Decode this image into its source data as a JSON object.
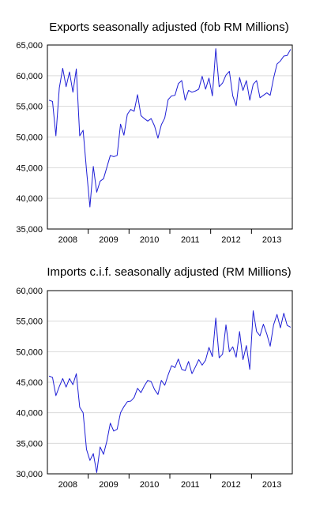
{
  "chart_data": [
    {
      "type": "line",
      "title": "Exports seasonally adjusted (fob RM Millions)",
      "xlabel": "",
      "ylabel": "",
      "ylim": [
        35000,
        65000
      ],
      "yticks": [
        35000,
        40000,
        45000,
        50000,
        55000,
        60000,
        65000
      ],
      "ytick_labels": [
        "35,000",
        "40,000",
        "45,000",
        "50,000",
        "55,000",
        "60,000",
        "65,000"
      ],
      "xlim": [
        "2008-01",
        "2013-12"
      ],
      "xtick_labels": [
        "2008",
        "2009",
        "2010",
        "2011",
        "2012",
        "2013"
      ],
      "grid": true,
      "line_color": "#1f1fd6",
      "series": [
        {
          "x_start": "2008-01",
          "frequency": "monthly",
          "values": [
            56000,
            55800,
            50200,
            58000,
            61200,
            58200,
            60600,
            57300,
            61100,
            50200,
            51100,
            44600,
            38600,
            45200,
            41000,
            42800,
            43200,
            45100,
            47000,
            46800,
            47000,
            52100,
            50300,
            53700,
            54500,
            54200,
            56900,
            53500,
            53000,
            52600,
            53000,
            51800,
            49800,
            52000,
            53100,
            56100,
            56700,
            56800,
            58700,
            59200,
            56000,
            57600,
            57300,
            57500,
            57800,
            59900,
            57800,
            59600,
            56700,
            64400,
            58200,
            58800,
            60100,
            60700,
            56700,
            55100,
            59700,
            57600,
            59200,
            56000,
            58600,
            59200,
            56400,
            56800,
            57200,
            56800,
            59600,
            61900,
            62400,
            63200,
            63300,
            64300
          ]
        }
      ]
    },
    {
      "type": "line",
      "title": "Imports c.i.f. seasonally adjusted (RM Millions)",
      "xlabel": "",
      "ylabel": "",
      "ylim": [
        30000,
        60000
      ],
      "yticks": [
        30000,
        35000,
        40000,
        45000,
        50000,
        55000,
        60000
      ],
      "ytick_labels": [
        "30,000",
        "35,000",
        "40,000",
        "45,000",
        "50,000",
        "55,000",
        "60,000"
      ],
      "xlim": [
        "2008-01",
        "2013-12"
      ],
      "xtick_labels": [
        "2008",
        "2009",
        "2010",
        "2011",
        "2012",
        "2013"
      ],
      "grid": true,
      "line_color": "#1f1fd6",
      "series": [
        {
          "x_start": "2008-01",
          "frequency": "monthly",
          "values": [
            46000,
            45800,
            42800,
            44300,
            45600,
            44200,
            45600,
            44600,
            46400,
            40900,
            40000,
            34000,
            32200,
            33300,
            30200,
            34400,
            33200,
            35400,
            38300,
            37000,
            37300,
            40000,
            41000,
            41800,
            41900,
            42500,
            44000,
            43300,
            44400,
            45300,
            45100,
            43800,
            43000,
            45300,
            44500,
            46200,
            47700,
            47400,
            48800,
            47100,
            46900,
            48400,
            46400,
            47500,
            48700,
            47800,
            48600,
            50700,
            49200,
            55500,
            49000,
            49600,
            54400,
            50000,
            50800,
            49100,
            53300,
            48700,
            51000,
            47100,
            56700,
            53300,
            52600,
            54500,
            52900,
            50900,
            54400,
            56100,
            53900,
            56300,
            54300,
            54000
          ]
        }
      ]
    }
  ]
}
